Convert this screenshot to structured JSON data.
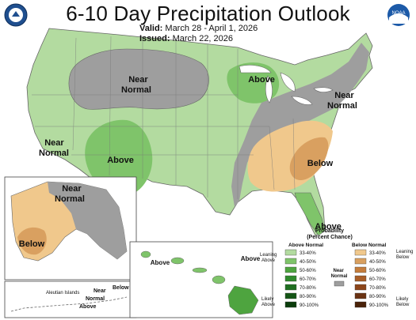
{
  "header": {
    "title": "6-10 Day Precipitation Outlook",
    "valid_label": "Valid:",
    "valid_value": "March 28 - April 1, 2026",
    "issued_label": "Issued:",
    "issued_value": "March 22, 2026",
    "left_logo_icon": "doc-seal-icon",
    "right_logo_icon": "noaa-logo-icon",
    "right_logo_text": "NOAA"
  },
  "colors": {
    "above_33_40": "#b3dba0",
    "above_40_50": "#7fc46a",
    "below_33_40": "#f0c88c",
    "below_40_50": "#d9a060",
    "near_normal": "#9e9e9e",
    "water": "#ffffff",
    "border": "#666666"
  },
  "map_labels": {
    "near_normal_north": "Near\nNormal",
    "above_great_lakes": "Above",
    "near_normal_northeast": "Near\nNormal",
    "near_normal_west": "Near\nNormal",
    "above_southwest": "Above",
    "below_southeast": "Below",
    "above_florida": "Above",
    "alaska_near_normal": "Near\nNormal",
    "alaska_below": "Below",
    "hawaii_above_left": "Above",
    "hawaii_above_right": "Above",
    "aleutian_title": "Aleutian Islands",
    "aleutian_near": "Near",
    "aleutian_normal": "Normal",
    "aleutian_below": "Below",
    "aleutian_above": "Above"
  },
  "legend": {
    "title_line1": "Probability",
    "title_line2": "(Percent Chance)",
    "above_normal": "Above Normal",
    "below_normal": "Below Normal",
    "leaning_above": "Leaning\nAbove",
    "likely_above": "Likely\nAbove",
    "near_normal": "Near\nNormal",
    "leaning_below": "Leaning\nBelow",
    "likely_below": "Likely\nBelow",
    "above_bins": [
      {
        "label": "33-40%",
        "color": "#b3dba0"
      },
      {
        "label": "40-50%",
        "color": "#7fc46a"
      },
      {
        "label": "50-60%",
        "color": "#4ea43f"
      },
      {
        "label": "60-70%",
        "color": "#2f8a2c"
      },
      {
        "label": "70-80%",
        "color": "#1f6f20"
      },
      {
        "label": "80-90%",
        "color": "#145515"
      },
      {
        "label": "90-100%",
        "color": "#0b3d0c"
      }
    ],
    "below_bins": [
      {
        "label": "33-40%",
        "color": "#f0c88c"
      },
      {
        "label": "40-50%",
        "color": "#d9a060"
      },
      {
        "label": "50-60%",
        "color": "#c57d3c"
      },
      {
        "label": "60-70%",
        "color": "#a95e27"
      },
      {
        "label": "70-80%",
        "color": "#8c4519"
      },
      {
        "label": "80-90%",
        "color": "#6a3212"
      },
      {
        "label": "90-100%",
        "color": "#4a2209"
      }
    ],
    "near_color": "#9e9e9e"
  }
}
